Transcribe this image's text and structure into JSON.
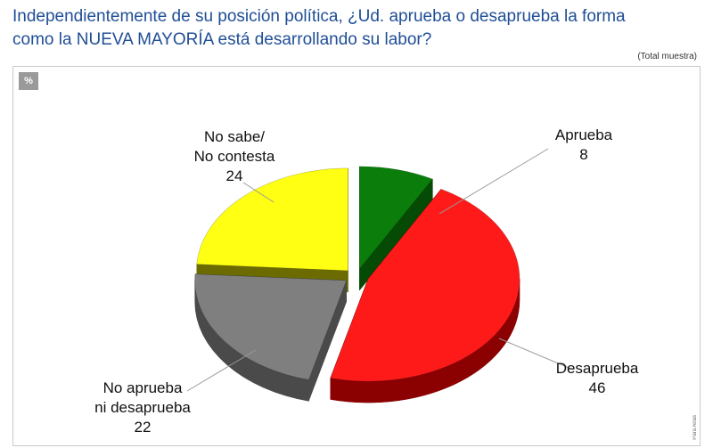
{
  "title_lines": [
    "Independientemente de su posición política, ¿Ud. aprueba o desaprueba la forma",
    "como la NUEVA MAYORÍA está desarrollando su labor?"
  ],
  "sample_note": "(Total muestra)",
  "unit_badge": "%",
  "credit": "Para Arias",
  "chart_data": {
    "type": "pie",
    "style": "3d-exploded",
    "categories": [
      "Aprueba",
      "Desaprueba",
      "No aprueba ni desaprueba",
      "No sabe/ No contesta"
    ],
    "values": [
      8,
      46,
      22,
      24
    ],
    "colors": [
      "#0a7d0a",
      "#ff1a1a",
      "#7f7f7f",
      "#ffff14"
    ],
    "side_colors": [
      "#054a05",
      "#8b0000",
      "#4a4a4a",
      "#6b6b00"
    ],
    "labels": [
      {
        "lines": [
          "Aprueba",
          "8"
        ]
      },
      {
        "lines": [
          "Desaprueba",
          "46"
        ]
      },
      {
        "lines": [
          "No aprueba",
          "ni desaprueba",
          "22"
        ]
      },
      {
        "lines": [
          "No sabe/",
          "No contesta",
          "24"
        ]
      }
    ]
  }
}
